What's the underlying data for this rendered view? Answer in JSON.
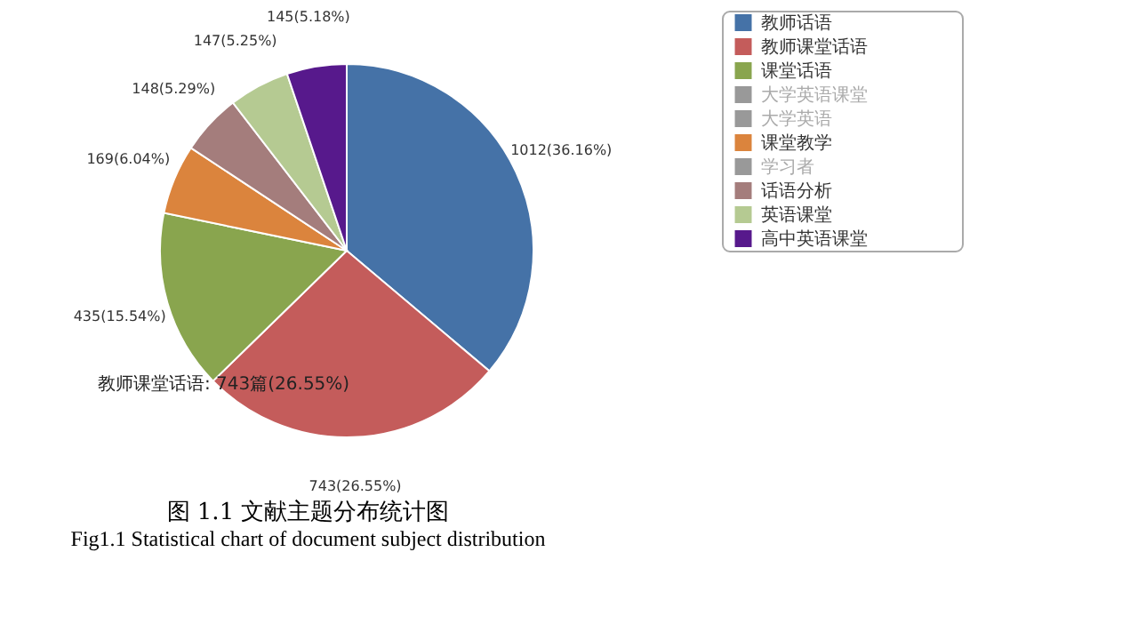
{
  "chart_data": {
    "type": "pie",
    "title": "图 1.1 文献主题分布统计图",
    "subtitle": "Fig1.1 Statistical chart of document subject distribution",
    "categories": [
      "教师话语",
      "教师课堂话语",
      "课堂话语",
      "大学英语课堂",
      "大学英语",
      "课堂教学",
      "学习者",
      "话语分析",
      "英语课堂",
      "高中英语课堂"
    ],
    "values": [
      1012,
      743,
      435,
      null,
      null,
      169,
      null,
      148,
      147,
      145
    ],
    "colors": [
      "#4572a7",
      "#c45c5b",
      "#89a54e",
      "#999999",
      "#999999",
      "#db843d",
      "#999999",
      "#a47d7c",
      "#b5ca92",
      "#57198c"
    ],
    "value_labels": [
      "1012(36.16%)",
      "743(26.55%)",
      "435(15.54%)",
      null,
      null,
      "169(6.04%)",
      null,
      "148(5.29%)",
      "147(5.25%)",
      "145(5.18%)"
    ],
    "annotations": [
      "教师课堂话语: 743篇(26.55%)"
    ],
    "legend": "right"
  }
}
